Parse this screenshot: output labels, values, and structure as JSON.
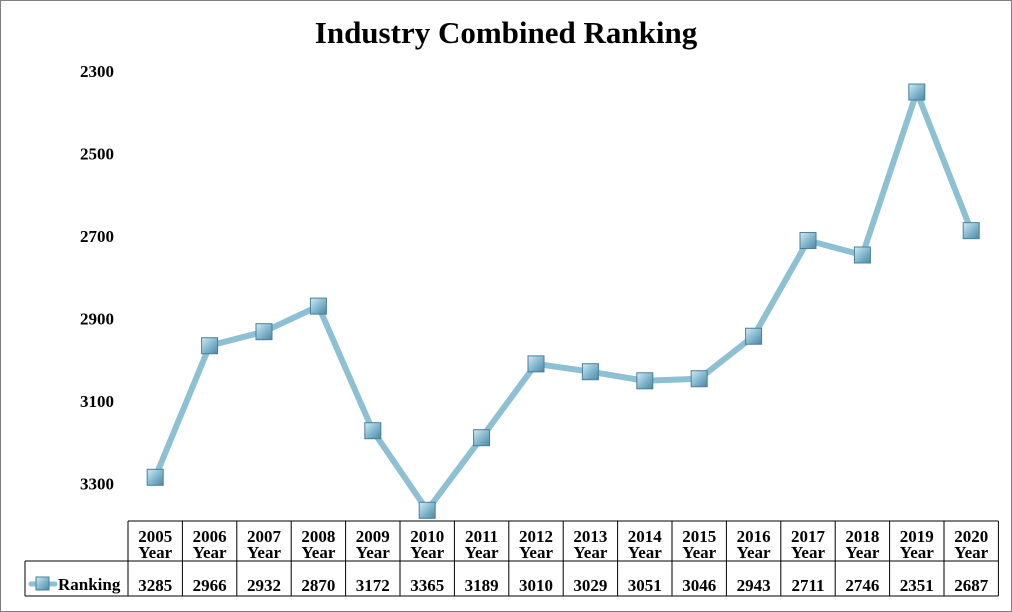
{
  "chart_data": {
    "type": "line",
    "title": "Industry Combined Ranking",
    "y_axis": {
      "reversed": true,
      "ylim": [
        2300,
        3400
      ],
      "ticks": [
        2300,
        2500,
        2700,
        2900,
        3100,
        3300
      ],
      "tick_labels": [
        "2300",
        "2500",
        "2700",
        "2900",
        "3100",
        "3300"
      ]
    },
    "categories": [
      [
        "2005",
        "Year"
      ],
      [
        "2006",
        "Year"
      ],
      [
        "2007",
        "Year"
      ],
      [
        "2008",
        "Year"
      ],
      [
        "2009",
        "Year"
      ],
      [
        "2010",
        "Year"
      ],
      [
        "2011",
        "Year"
      ],
      [
        "2012",
        "Year"
      ],
      [
        "2013",
        "Year"
      ],
      [
        "2014",
        "Year"
      ],
      [
        "2015",
        "Year"
      ],
      [
        "2016",
        "Year"
      ],
      [
        "2017",
        "Year"
      ],
      [
        "2018",
        "Year"
      ],
      [
        "2019",
        "Year"
      ],
      [
        "2020",
        "Year"
      ]
    ],
    "series": [
      {
        "name": "Ranking",
        "values": [
          3285,
          2966,
          2932,
          2870,
          3172,
          3365,
          3189,
          3010,
          3029,
          3051,
          3046,
          2943,
          2711,
          2746,
          2351,
          2687
        ],
        "value_labels": [
          "3285",
          "2966",
          "2932",
          "2870",
          "3172",
          "3365",
          "3189",
          "3010",
          "3029",
          "3051",
          "3046",
          "2943",
          "2711",
          "2746",
          "2351",
          "2687"
        ],
        "color": "#8dc0d3",
        "marker_color": "#7eb4cc",
        "marker_edge": "#4a7f97"
      }
    ],
    "legend": "data-table",
    "grid": false
  }
}
